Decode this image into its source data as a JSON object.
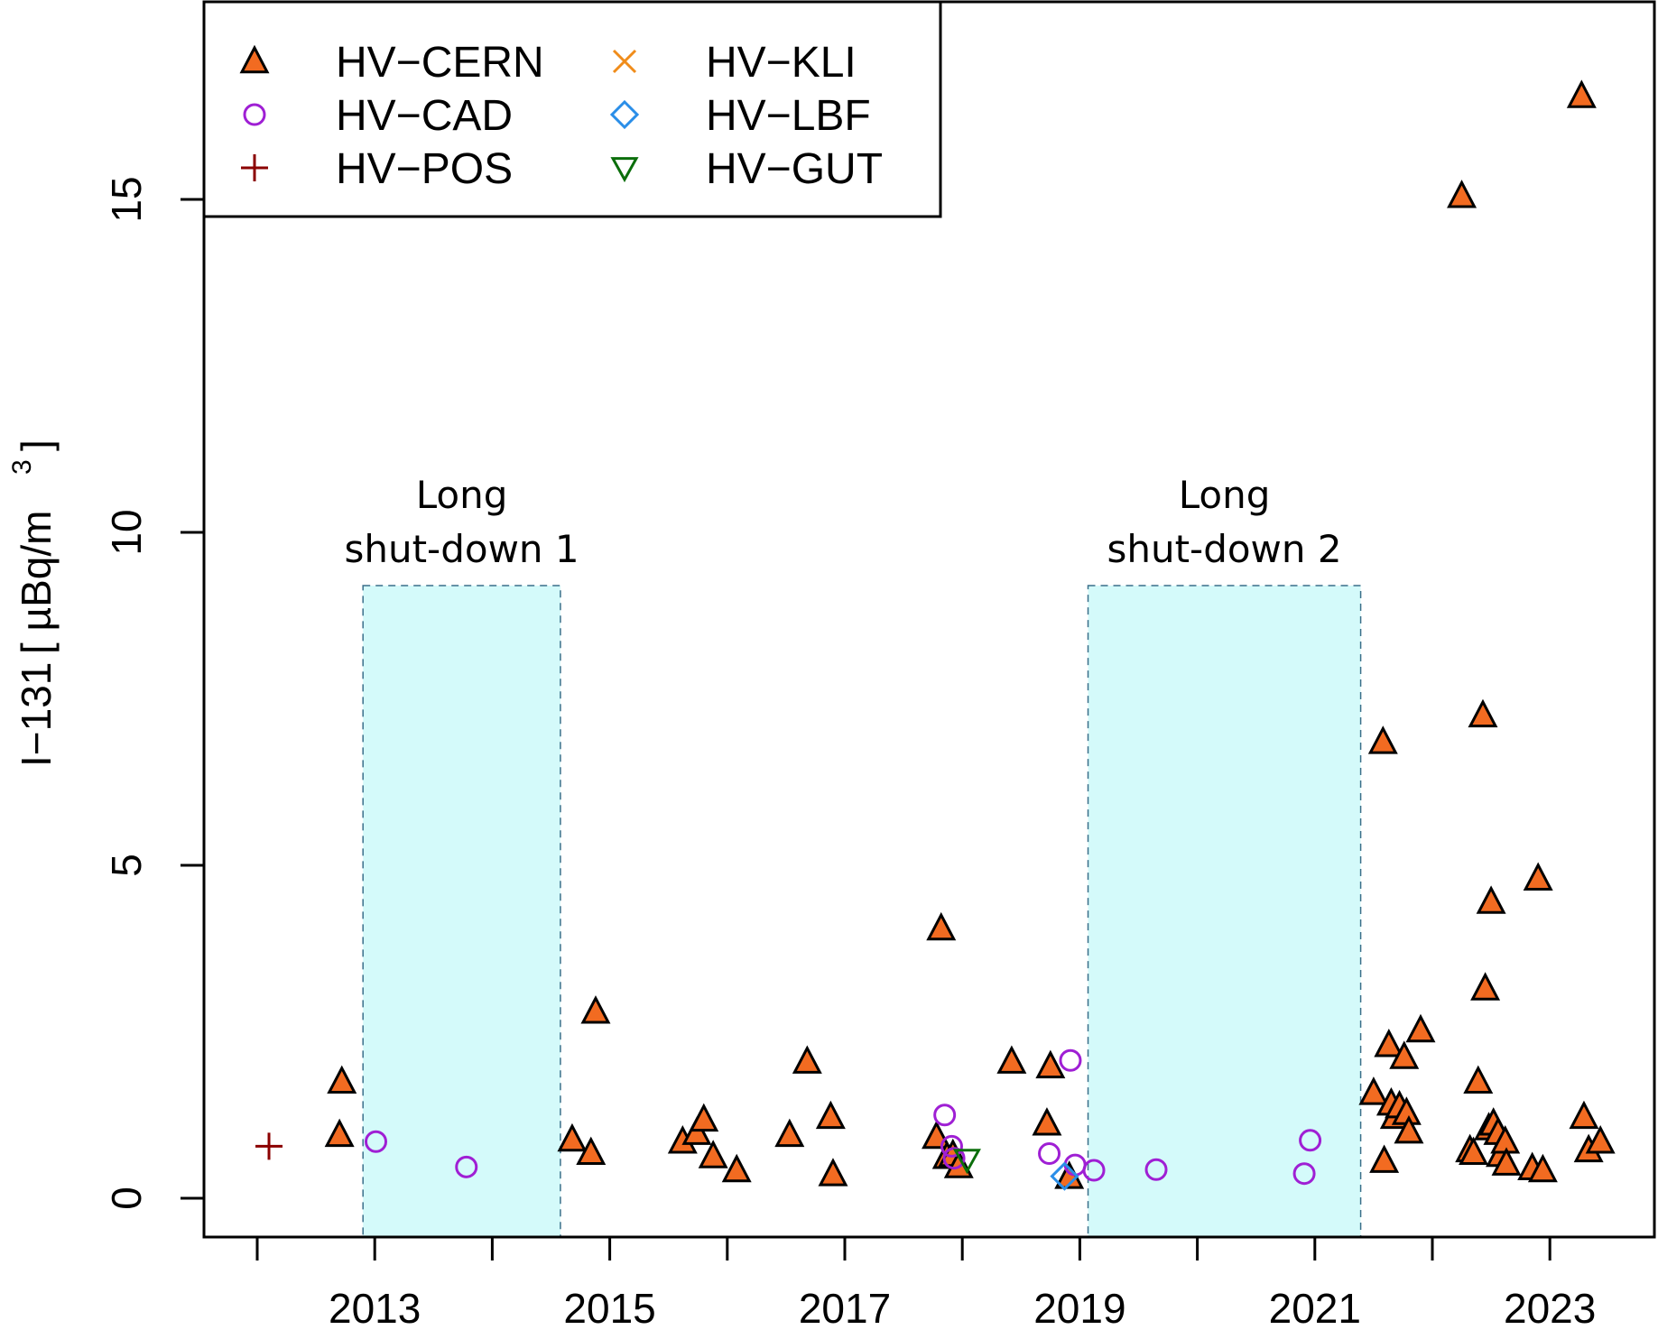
{
  "chart_data": {
    "type": "scatter",
    "ylabel_main": "I−131",
    "ylabel_unit": "[ µBq/m",
    "ylabel_sup": "3",
    "ylabel_close": "]",
    "xlim": [
      2011.55,
      2024.0
    ],
    "ylim": [
      -0.6,
      18.5
    ],
    "x_ticks": [
      2012,
      2013,
      2014,
      2015,
      2016,
      2017,
      2018,
      2019,
      2020,
      2021,
      2022,
      2023
    ],
    "x_tick_labels": [
      {
        "value": 2013,
        "label": "2013"
      },
      {
        "value": 2015,
        "label": "2015"
      },
      {
        "value": 2017,
        "label": "2017"
      },
      {
        "value": 2019,
        "label": "2019"
      },
      {
        "value": 2021,
        "label": "2021"
      },
      {
        "value": 2023,
        "label": "2023"
      }
    ],
    "y_ticks": [
      {
        "value": 0,
        "label": "0"
      },
      {
        "value": 5,
        "label": "5"
      },
      {
        "value": 10,
        "label": "10"
      },
      {
        "value": 15,
        "label": "15"
      }
    ],
    "grid": false,
    "legend_position": "top-left",
    "shaded_regions": [
      {
        "x0": 2012.9,
        "x1": 2014.58,
        "y0": -0.6,
        "y1": 9.2,
        "label_line1": "Long",
        "label_line2": "shut-down 1",
        "color": "#d4fafa"
      },
      {
        "x0": 2019.07,
        "x1": 2021.39,
        "y0": -0.6,
        "y1": 9.2,
        "label_line1": "Long",
        "label_line2": "shut-down 2",
        "color": "#d4fafa"
      }
    ],
    "series": [
      {
        "name": "HV−CERN",
        "marker": "triangle-up",
        "color": "#f26b21",
        "stroke": "#000000",
        "points": [
          [
            2012.72,
            1.75
          ],
          [
            2012.7,
            0.95
          ],
          [
            2014.68,
            0.88
          ],
          [
            2014.84,
            0.68
          ],
          [
            2014.88,
            2.8
          ],
          [
            2015.62,
            0.85
          ],
          [
            2015.74,
            0.98
          ],
          [
            2015.8,
            1.18
          ],
          [
            2015.88,
            0.63
          ],
          [
            2016.08,
            0.42
          ],
          [
            2016.53,
            0.95
          ],
          [
            2016.68,
            2.05
          ],
          [
            2016.88,
            1.22
          ],
          [
            2016.9,
            0.36
          ],
          [
            2017.78,
            0.92
          ],
          [
            2017.82,
            4.05
          ],
          [
            2017.87,
            0.62
          ],
          [
            2017.92,
            0.65
          ],
          [
            2017.97,
            0.48
          ],
          [
            2018.42,
            2.05
          ],
          [
            2018.72,
            1.12
          ],
          [
            2018.75,
            1.98
          ],
          [
            2018.91,
            0.32
          ],
          [
            2021.5,
            1.58
          ],
          [
            2021.58,
            6.85
          ],
          [
            2021.59,
            0.56
          ],
          [
            2021.63,
            2.3
          ],
          [
            2021.65,
            1.42
          ],
          [
            2021.68,
            1.22
          ],
          [
            2021.72,
            1.38
          ],
          [
            2021.76,
            2.12
          ],
          [
            2021.78,
            1.28
          ],
          [
            2021.8,
            1.0
          ],
          [
            2021.9,
            2.52
          ],
          [
            2022.25,
            15.05
          ],
          [
            2022.32,
            0.72
          ],
          [
            2022.35,
            0.68
          ],
          [
            2022.39,
            1.75
          ],
          [
            2022.43,
            7.25
          ],
          [
            2022.45,
            3.15
          ],
          [
            2022.48,
            1.05
          ],
          [
            2022.5,
            4.45
          ],
          [
            2022.52,
            1.12
          ],
          [
            2022.56,
            0.98
          ],
          [
            2022.58,
            0.65
          ],
          [
            2022.62,
            0.85
          ],
          [
            2022.63,
            0.52
          ],
          [
            2022.85,
            0.45
          ],
          [
            2022.9,
            4.8
          ],
          [
            2022.94,
            0.42
          ],
          [
            2023.27,
            16.55
          ],
          [
            2023.29,
            1.22
          ],
          [
            2023.33,
            0.72
          ],
          [
            2023.43,
            0.85
          ]
        ]
      },
      {
        "name": "HV−CAD",
        "marker": "circle",
        "color": "#9f1fd4",
        "points": [
          [
            2013.01,
            0.85
          ],
          [
            2013.78,
            0.47
          ],
          [
            2017.85,
            1.25
          ],
          [
            2017.91,
            0.78
          ],
          [
            2017.93,
            0.6
          ],
          [
            2018.74,
            0.67
          ],
          [
            2018.92,
            2.07
          ],
          [
            2018.96,
            0.5
          ],
          [
            2019.12,
            0.42
          ],
          [
            2019.65,
            0.43
          ],
          [
            2020.91,
            0.37
          ],
          [
            2020.96,
            0.87
          ]
        ]
      },
      {
        "name": "HV−POS",
        "marker": "plus",
        "color": "#8b0000",
        "points": [
          [
            2012.1,
            0.78
          ]
        ]
      },
      {
        "name": "HV−KLI",
        "marker": "cross",
        "color": "#f08c1a",
        "points": []
      },
      {
        "name": "HV−LBF",
        "marker": "diamond",
        "color": "#2a8ee8",
        "points": [
          [
            2018.87,
            0.33
          ]
        ]
      },
      {
        "name": "HV−GUT",
        "marker": "triangle-down",
        "color": "#0b6e0b",
        "points": [
          [
            2018.04,
            0.58
          ]
        ]
      }
    ]
  }
}
